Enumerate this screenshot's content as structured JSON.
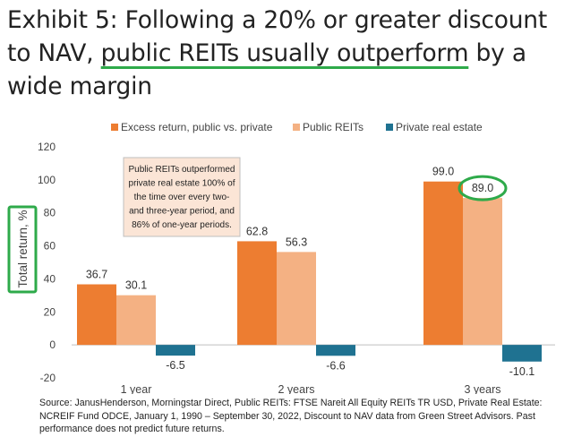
{
  "headline": {
    "part1": "Exhibit 5: Following a 20% or greater discount to NAV, ",
    "highlight": "public REITs usually outperform",
    "part2": " by a wide margin"
  },
  "callout": {
    "lines": [
      "Public REITs outperformed",
      "private real estate 100% of",
      "the time over every two-",
      "and three-year period, and",
      "86% of one-year periods."
    ]
  },
  "source_note": "Source: JanusHenderson, Morningstar Direct, Public REITs: FTSE Nareit All Equity REITs TR USD, Private Real Estate: NCREIF Fund ODCE, January 1, 1990 – September 30, 2022, Discount to NAV data from Green Street Advisors. Past performance does not predict future returns.",
  "colors": {
    "excess": "#ed7d31",
    "public": "#f4b183",
    "private": "#1f7291",
    "highlight": "#2eaa4a",
    "callout_bg": "#fbe5d6"
  },
  "chart_data": {
    "type": "bar",
    "title": "",
    "xlabel": "",
    "ylabel": "Total return, %",
    "categories": [
      "1 year",
      "2 years",
      "3 years"
    ],
    "series": [
      {
        "name": "Excess return, public vs. private",
        "values": [
          36.7,
          62.8,
          99.0
        ],
        "labels": [
          "36.7",
          "62.8",
          "99.0"
        ]
      },
      {
        "name": "Public REITs",
        "values": [
          30.1,
          56.3,
          89.0
        ],
        "labels": [
          "30.1",
          "56.3",
          "89.0"
        ]
      },
      {
        "name": "Private real estate",
        "values": [
          -6.5,
          -6.6,
          -10.1
        ],
        "labels": [
          "-6.5",
          "-6.6",
          "-10.1"
        ]
      }
    ],
    "ylim": [
      -20,
      120
    ],
    "yticks": [
      "-20",
      "0",
      "20",
      "40",
      "60",
      "80",
      "100",
      "120"
    ],
    "legend_position": "top",
    "grid": false,
    "highlighted_label": "89.0"
  }
}
